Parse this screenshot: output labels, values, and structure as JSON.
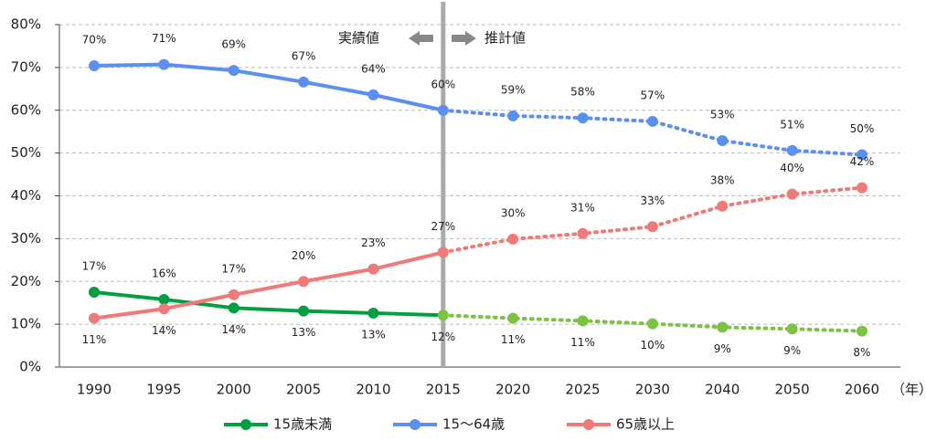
{
  "chart_data": {
    "type": "line",
    "categories": [
      "1990",
      "1995",
      "2000",
      "2005",
      "2010",
      "2015",
      "2020",
      "2025",
      "2030",
      "2040",
      "2050",
      "2060"
    ],
    "x_unit": "（年）",
    "annotation_left": "実績値",
    "annotation_right": "推計値",
    "forecast_from": "2015",
    "ylim": [
      0,
      80
    ],
    "yticks": [
      {
        "value": 0,
        "label": "0%"
      },
      {
        "value": 10,
        "label": "10%"
      },
      {
        "value": 20,
        "label": "20%"
      },
      {
        "value": 30,
        "label": "30%"
      },
      {
        "value": 40,
        "label": "40%"
      },
      {
        "value": 50,
        "label": "50%"
      },
      {
        "value": 60,
        "label": "60%"
      },
      {
        "value": 70,
        "label": "70%"
      },
      {
        "value": 80,
        "label": "80%"
      }
    ],
    "grid": true,
    "series": [
      {
        "name": "15歳未満",
        "color": "#00a040",
        "forecast_color": "#7cc243",
        "values": [
          17.5,
          15.8,
          13.8,
          13.1,
          12.6,
          12.1,
          11.4,
          10.8,
          10.1,
          9.3,
          8.9,
          8.4
        ],
        "value_labels": [
          "17%",
          "16%",
          "14%",
          "13%",
          "13%",
          "12%",
          "11%",
          "11%",
          "10%",
          "9%",
          "9%",
          "8%"
        ]
      },
      {
        "name": "15～64歳",
        "color": "#5b8ff0",
        "forecast_color": "#5b8ff0",
        "values": [
          70.4,
          70.7,
          69.3,
          66.6,
          63.6,
          60.0,
          58.7,
          58.2,
          57.4,
          52.9,
          50.6,
          49.6
        ],
        "value_labels": [
          "70%",
          "71%",
          "69%",
          "67%",
          "64%",
          "60%",
          "59%",
          "58%",
          "57%",
          "53%",
          "51%",
          "50%"
        ]
      },
      {
        "name": "65歳以上",
        "color": "#f07a7a",
        "forecast_color": "#f07a7a",
        "values": [
          11.4,
          13.6,
          16.9,
          20.0,
          22.9,
          26.8,
          29.9,
          31.2,
          32.8,
          37.6,
          40.4,
          41.9
        ],
        "value_labels": [
          "11%",
          "14%",
          "17%",
          "20%",
          "23%",
          "27%",
          "30%",
          "31%",
          "33%",
          "38%",
          "40%",
          "42%"
        ]
      }
    ]
  }
}
